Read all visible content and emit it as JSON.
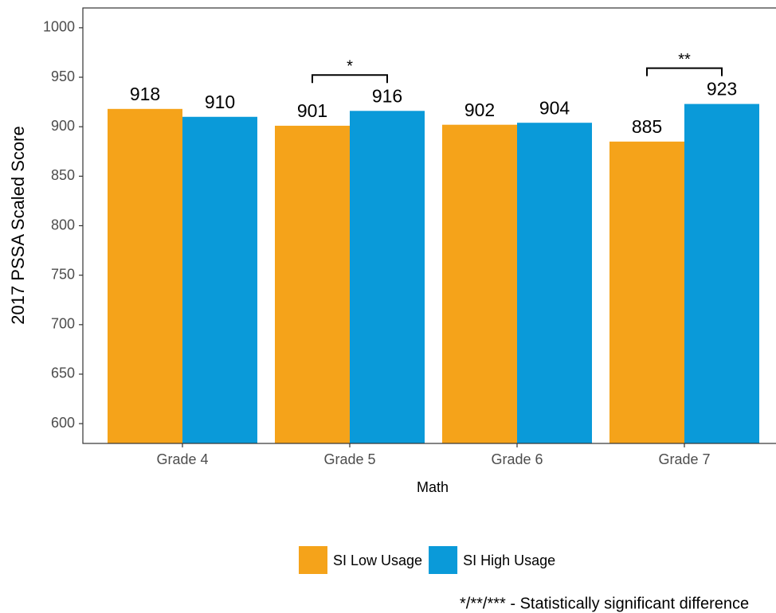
{
  "chart_data": {
    "type": "bar",
    "y_label": "2017 PSSA Scaled Score",
    "x_label": "Math",
    "categories": [
      "Grade 4",
      "Grade 5",
      "Grade 6",
      "Grade 7"
    ],
    "series": [
      {
        "name": "SI Low Usage",
        "color": "#f5a31a",
        "values": [
          918,
          901,
          902,
          885
        ]
      },
      {
        "name": "SI High Usage",
        "color": "#0a9ad9",
        "values": [
          910,
          916,
          904,
          923
        ]
      }
    ],
    "significance": [
      null,
      "*",
      null,
      "**"
    ],
    "footnote": "*/**/*** - Statistically significant difference",
    "ylim": [
      580,
      1020
    ],
    "yticks": [
      600,
      650,
      700,
      750,
      800,
      850,
      900,
      950,
      1000
    ],
    "legend": "bottom"
  }
}
